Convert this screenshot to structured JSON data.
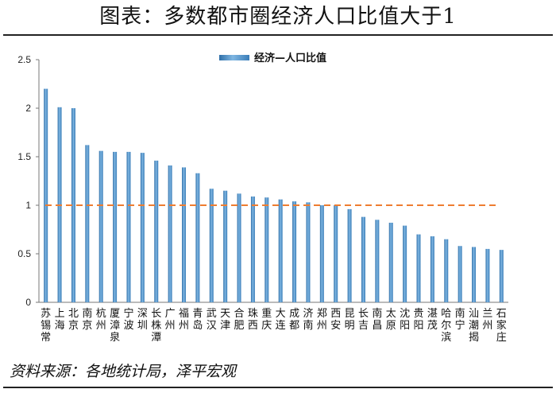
{
  "figure": {
    "title": "图表：多数都市圈经济人口比值大于1",
    "source": "资料来源：各地统计局，泽平宏观"
  },
  "chart_data": {
    "type": "bar",
    "categories": [
      "苏锡常",
      "上海",
      "北京",
      "南京",
      "杭州",
      "厦漳泉",
      "宁波",
      "深圳",
      "长株潭",
      "广州",
      "福州",
      "青岛",
      "武汉",
      "天津",
      "合肥",
      "珠西",
      "重庆",
      "大连",
      "成都",
      "济南",
      "郑州",
      "西安",
      "昆明",
      "长吉",
      "南昌",
      "太原",
      "沈阳",
      "贵阳",
      "湛茂",
      "哈尔滨",
      "南宁",
      "汕潮揭",
      "兰州",
      "石家庄"
    ],
    "series": [
      {
        "name": "经济—人口比值",
        "values": [
          2.2,
          2.01,
          2.0,
          1.62,
          1.56,
          1.55,
          1.55,
          1.54,
          1.46,
          1.41,
          1.39,
          1.33,
          1.17,
          1.15,
          1.12,
          1.09,
          1.08,
          1.06,
          1.04,
          1.03,
          1.0,
          1.0,
          0.96,
          0.88,
          0.85,
          0.82,
          0.79,
          0.7,
          0.68,
          0.65,
          0.58,
          0.57,
          0.55,
          0.54
        ],
        "color": "#4a90c8"
      }
    ],
    "reference_line": {
      "y": 1.0,
      "color": "#ee7d31",
      "style": "dashed"
    },
    "y_ticks": [
      "0",
      "0.5",
      "1",
      "1.5",
      "2",
      "2.5"
    ],
    "ylim": [
      0,
      2.5
    ],
    "legend_position": "top-center",
    "grid": false
  }
}
